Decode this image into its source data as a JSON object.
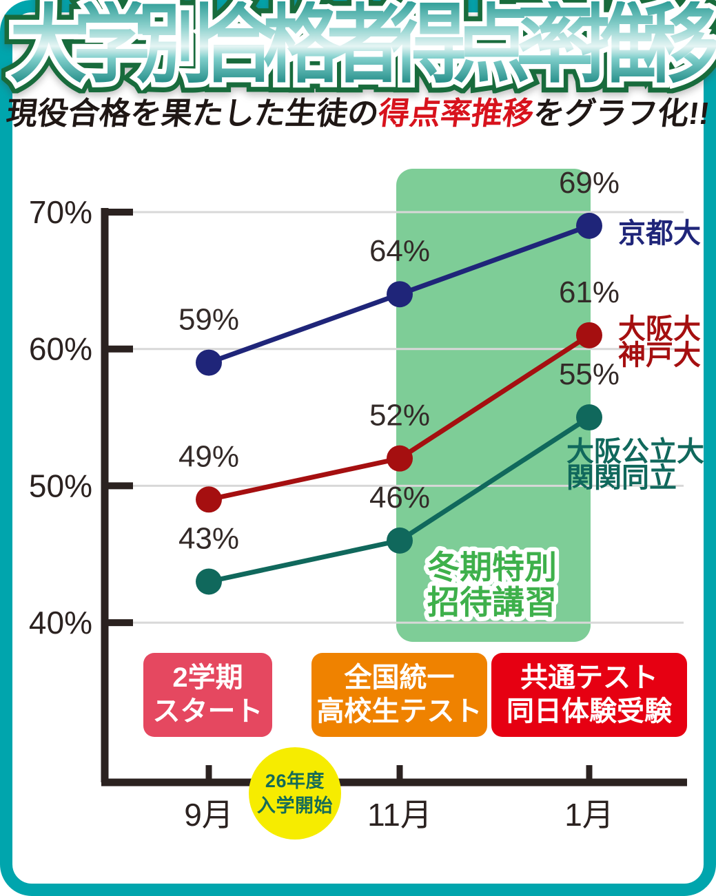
{
  "title": "大学別合格者得点率推移",
  "subtitle": {
    "pre": "現役合格を果たした生徒の",
    "highlight": "得点率推移",
    "post": "をグラフ化!!"
  },
  "chart_data": {
    "type": "line",
    "categories": [
      "9月",
      "11月",
      "1月"
    ],
    "unit": "%",
    "ylim": [
      40,
      70
    ],
    "grid": true,
    "y_ticks": [
      {
        "label": "70%",
        "value": 70
      },
      {
        "label": "60%",
        "value": 60
      },
      {
        "label": "50%",
        "value": 50
      },
      {
        "label": "40%",
        "value": 40
      }
    ],
    "series": [
      {
        "name": "京都大",
        "label_lines": [
          "京都大"
        ],
        "values": [
          59,
          64,
          69
        ],
        "point_labels": [
          "59%",
          "64%",
          "69%"
        ],
        "color": "#1f2579"
      },
      {
        "name": "大阪大・神戸大",
        "label_lines": [
          "大阪大",
          "神戸大"
        ],
        "values": [
          49,
          52,
          61
        ],
        "point_labels": [
          "49%",
          "52%",
          "61%"
        ],
        "color": "#a50f10"
      },
      {
        "name": "大阪公立大・関関同立",
        "label_lines": [
          "大阪公立大",
          "関関同立"
        ],
        "values": [
          43,
          46,
          55
        ],
        "point_labels": [
          "43%",
          "46%",
          "55%"
        ],
        "color": "#10685c"
      }
    ],
    "highlight_band": {
      "label_lines": [
        "冬期特別",
        "招待講習"
      ],
      "from_category": "11月",
      "to_category": "1月",
      "color": "#7ecd97",
      "text_color": "#3eb04b"
    }
  },
  "annotations": {
    "badges": [
      {
        "lines": [
          "2学期",
          "スタート"
        ],
        "color": "#e54860"
      },
      {
        "lines": [
          "全国統一",
          "高校生テスト"
        ],
        "color": "#ef8200"
      },
      {
        "lines": [
          "共通テスト",
          "同日体験受験"
        ],
        "color": "#e60012"
      }
    ],
    "start_circle": {
      "lines": [
        "26年度",
        "入学開始"
      ],
      "bg": "#f6ec00",
      "text_color": "#156b58"
    }
  },
  "colors": {
    "frame_border": "#00a5ad",
    "axis": "#2b2220",
    "gridline": "#d8d8d8",
    "value_label": "#332a28"
  }
}
